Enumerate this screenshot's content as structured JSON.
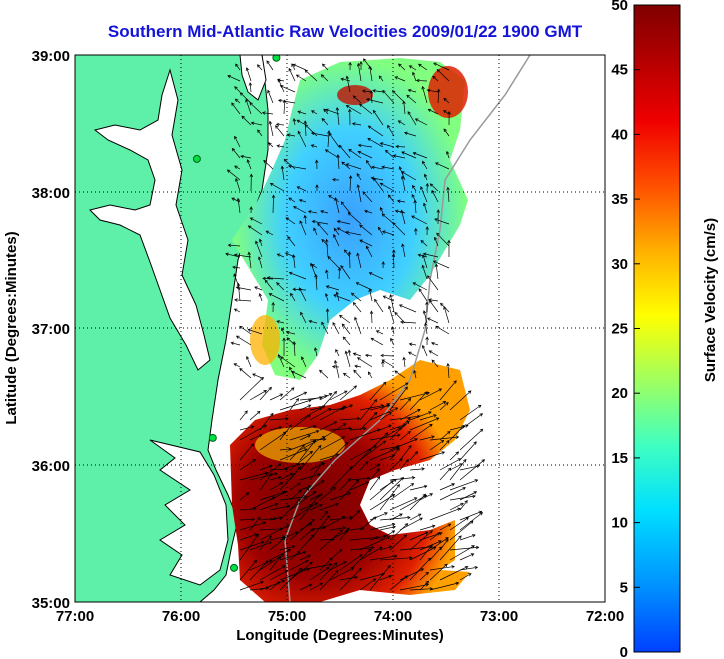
{
  "title": "Southern Mid-Atlantic Raw Velocities 2009/01/22 1900 GMT",
  "map": {
    "lon_range": [
      -77,
      -72
    ],
    "lat_range": [
      35,
      39
    ],
    "x_ticks": [
      "77:00",
      "76:00",
      "75:00",
      "74:00",
      "73:00",
      "72:00"
    ],
    "y_ticks": [
      "39:00",
      "38:00",
      "37:00",
      "36:00",
      "35:00"
    ],
    "xlabel": "Longitude (Degrees:Minutes)",
    "ylabel": "Latitude (Degrees:Minutes)",
    "grid": true,
    "land_color": "#5ef0a8",
    "stations": [
      {
        "lon": -75.1,
        "lat": 38.98
      },
      {
        "lon": -75.85,
        "lat": 38.24
      },
      {
        "lon": -75.7,
        "lat": 36.2
      },
      {
        "lon": -75.5,
        "lat": 35.25
      }
    ]
  },
  "colorbar": {
    "label": "Surface Velocity (cm/s)",
    "range": [
      0,
      50
    ],
    "ticks": [
      "50",
      "45",
      "40",
      "35",
      "30",
      "25",
      "20",
      "15",
      "10",
      "5",
      "0"
    ]
  }
}
